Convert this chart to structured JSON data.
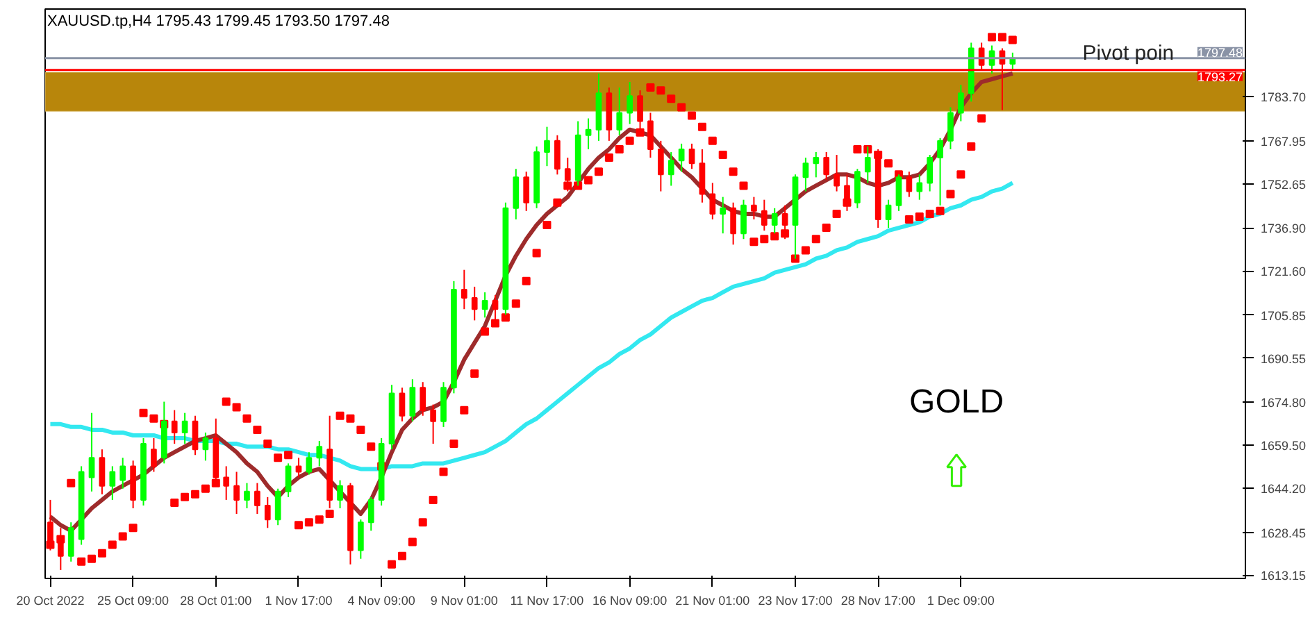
{
  "chart_data": {
    "type": "candlestick",
    "title": "XAUUSD.tp,H4  1795.43 1799.45 1793.50 1797.48",
    "categories": [
      "20 Oct 2022",
      null,
      null,
      null,
      null,
      null,
      null,
      null,
      "25 Oct 09:00",
      null,
      null,
      null,
      null,
      null,
      null,
      null,
      "28 Oct 01:00",
      null,
      null,
      null,
      null,
      null,
      null,
      null,
      "1 Nov 17:00",
      null,
      null,
      null,
      null,
      null,
      null,
      null,
      "4 Nov 09:00",
      null,
      null,
      null,
      null,
      null,
      null,
      null,
      "9 Nov 01:00",
      null,
      null,
      null,
      null,
      null,
      null,
      null,
      "11 Nov 17:00",
      null,
      null,
      null,
      null,
      null,
      null,
      null,
      "16 Nov 09:00",
      null,
      null,
      null,
      null,
      null,
      null,
      null,
      "21 Nov 01:00",
      null,
      null,
      null,
      null,
      null,
      null,
      null,
      "23 Nov 17:00",
      null,
      null,
      null,
      null,
      null,
      null,
      null,
      "28 Nov 17:00",
      null,
      null,
      null,
      null,
      null,
      null,
      null,
      "1 Dec 09:00",
      null,
      null,
      null,
      null,
      null,
      null,
      null,
      null,
      null,
      null,
      null,
      null,
      null,
      null,
      null,
      null,
      null,
      null,
      null,
      null,
      null,
      null,
      null,
      null,
      null,
      null,
      null
    ],
    "ohlc": [
      [
        1632,
        1640,
        1622,
        1625
      ],
      [
        1626,
        1630,
        1615,
        1620
      ],
      [
        1620,
        1632,
        1618,
        1630
      ],
      [
        1626,
        1652,
        1624,
        1650
      ],
      [
        1648,
        1671,
        1643,
        1655
      ],
      [
        1655,
        1658,
        1642,
        1645
      ],
      [
        1645,
        1652,
        1640,
        1650
      ],
      [
        1647,
        1655,
        1644,
        1652
      ],
      [
        1652,
        1654,
        1637,
        1640
      ],
      [
        1640,
        1662,
        1638,
        1660
      ],
      [
        1658,
        1662,
        1650,
        1652
      ],
      [
        1655,
        1675,
        1653,
        1668
      ],
      [
        1668,
        1672,
        1660,
        1664
      ],
      [
        1664,
        1671,
        1660,
        1668
      ],
      [
        1668,
        1670,
        1656,
        1658
      ],
      [
        1658,
        1664,
        1654,
        1662
      ],
      [
        1662,
        1669,
        1646,
        1648
      ],
      [
        1648,
        1652,
        1640,
        1645
      ],
      [
        1645,
        1650,
        1635,
        1640
      ],
      [
        1640,
        1646,
        1637,
        1643
      ],
      [
        1643,
        1646,
        1635,
        1638
      ],
      [
        1638,
        1641,
        1630,
        1633
      ],
      [
        1633,
        1644,
        1631,
        1643
      ],
      [
        1643,
        1653,
        1641,
        1652
      ],
      [
        1652,
        1655,
        1648,
        1650
      ],
      [
        1650,
        1657,
        1649,
        1655
      ],
      [
        1655,
        1661,
        1652,
        1659
      ],
      [
        1658,
        1670,
        1637,
        1640
      ],
      [
        1640,
        1647,
        1637,
        1645
      ],
      [
        1645,
        1646,
        1617,
        1622
      ],
      [
        1622,
        1633,
        1619,
        1632
      ],
      [
        1632,
        1641,
        1629,
        1640
      ],
      [
        1640,
        1662,
        1638,
        1660
      ],
      [
        1660,
        1681,
        1658,
        1678
      ],
      [
        1678,
        1680,
        1668,
        1670
      ],
      [
        1670,
        1683,
        1668,
        1680
      ],
      [
        1680,
        1682,
        1670,
        1672
      ],
      [
        1672,
        1674,
        1660,
        1668
      ],
      [
        1668,
        1682,
        1666,
        1680
      ],
      [
        1680,
        1718,
        1678,
        1715
      ],
      [
        1715,
        1722,
        1708,
        1712
      ],
      [
        1712,
        1716,
        1704,
        1708
      ],
      [
        1708,
        1714,
        1705,
        1711
      ],
      [
        1711,
        1713,
        1704,
        1708
      ],
      [
        1708,
        1746,
        1706,
        1744
      ],
      [
        1744,
        1758,
        1740,
        1755
      ],
      [
        1755,
        1757,
        1743,
        1746
      ],
      [
        1746,
        1766,
        1744,
        1764
      ],
      [
        1764,
        1773,
        1759,
        1768
      ],
      [
        1768,
        1770,
        1756,
        1758
      ],
      [
        1758,
        1762,
        1750,
        1754
      ],
      [
        1754,
        1775,
        1752,
        1770
      ],
      [
        1770,
        1776,
        1765,
        1772
      ],
      [
        1772,
        1792,
        1768,
        1785
      ],
      [
        1785,
        1787,
        1768,
        1772
      ],
      [
        1772,
        1787,
        1770,
        1778
      ],
      [
        1778,
        1789,
        1774,
        1784
      ],
      [
        1784,
        1786,
        1772,
        1775
      ],
      [
        1775,
        1778,
        1762,
        1765
      ],
      [
        1765,
        1768,
        1750,
        1756
      ],
      [
        1756,
        1764,
        1752,
        1761
      ],
      [
        1761,
        1767,
        1757,
        1765
      ],
      [
        1765,
        1767,
        1758,
        1760
      ],
      [
        1760,
        1765,
        1746,
        1749
      ],
      [
        1749,
        1753,
        1740,
        1742
      ],
      [
        1742,
        1748,
        1735,
        1744
      ],
      [
        1744,
        1746,
        1731,
        1735
      ],
      [
        1735,
        1747,
        1733,
        1745
      ],
      [
        1745,
        1748,
        1740,
        1743
      ],
      [
        1743,
        1747,
        1736,
        1738
      ],
      [
        1738,
        1744,
        1735,
        1742
      ],
      [
        1742,
        1745,
        1733,
        1738
      ],
      [
        1738,
        1756,
        1726,
        1755
      ],
      [
        1755,
        1762,
        1750,
        1760
      ],
      [
        1760,
        1764,
        1755,
        1762
      ],
      [
        1762,
        1764,
        1754,
        1756
      ],
      [
        1756,
        1763,
        1750,
        1752
      ],
      [
        1752,
        1756,
        1743,
        1746
      ],
      [
        1746,
        1758,
        1744,
        1757
      ],
      [
        1757,
        1766,
        1753,
        1762
      ],
      [
        1762,
        1765,
        1737,
        1740
      ],
      [
        1740,
        1747,
        1737,
        1745
      ],
      [
        1745,
        1756,
        1743,
        1755
      ],
      [
        1755,
        1757,
        1748,
        1750
      ],
      [
        1750,
        1756,
        1747,
        1753
      ],
      [
        1753,
        1763,
        1750,
        1762
      ],
      [
        1762,
        1769,
        1745,
        1768
      ],
      [
        1768,
        1780,
        1765,
        1778
      ],
      [
        1778,
        1788,
        1775,
        1785
      ],
      [
        1785,
        1803,
        1782,
        1801
      ],
      [
        1801,
        1803,
        1793,
        1795
      ],
      [
        1795,
        1802,
        1792,
        1800
      ],
      [
        1800,
        1801,
        1779,
        1795.43
      ],
      [
        1795.43,
        1799.45,
        1793.5,
        1797.48
      ],
      null,
      null,
      null,
      null,
      null,
      null,
      null,
      null,
      null,
      null,
      null,
      null,
      null,
      null,
      null,
      null,
      null,
      null,
      null,
      null,
      null,
      null
    ],
    "colors": [
      "#ff0000",
      "#ff0000",
      "#00ff00",
      "#00ff00",
      "#00ff00",
      "#ff0000",
      "#00ff00",
      "#00ff00",
      "#ff0000",
      "#00ff00",
      "#ff0000",
      "#00ff00",
      "#ff0000",
      "#00ff00",
      "#ff0000",
      "#00ff00",
      "#ff0000",
      "#ff0000",
      "#ff0000",
      "#00ff00",
      "#ff0000",
      "#ff0000",
      "#00ff00",
      "#00ff00",
      "#ff0000",
      "#00ff00",
      "#00ff00",
      "#ff0000",
      "#00ff00",
      "#ff0000",
      "#00ff00",
      "#00ff00",
      "#00ff00",
      "#00ff00",
      "#ff0000",
      "#00ff00",
      "#ff0000",
      "#ff0000",
      "#00ff00",
      "#00ff00",
      "#ff0000",
      "#ff0000",
      "#00ff00",
      "#ff0000",
      "#00ff00",
      "#00ff00",
      "#ff0000",
      "#00ff00",
      "#00ff00",
      "#ff0000",
      "#ff0000",
      "#00ff00",
      "#00ff00",
      "#00ff00",
      "#ff0000",
      "#00ff00",
      "#00ff00",
      "#ff0000",
      "#ff0000",
      "#ff0000",
      "#00ff00",
      "#00ff00",
      "#ff0000",
      "#ff0000",
      "#ff0000",
      "#00ff00",
      "#ff0000",
      "#00ff00",
      "#ff0000",
      "#ff0000",
      "#00ff00",
      "#ff0000",
      "#00ff00",
      "#00ff00",
      "#00ff00",
      "#ff0000",
      "#ff0000",
      "#ff0000",
      "#00ff00",
      "#00ff00",
      "#ff0000",
      "#00ff00",
      "#00ff00",
      "#ff0000",
      "#00ff00",
      "#00ff00",
      "#00ff00",
      "#00ff00",
      "#00ff00",
      "#00ff00",
      "#ff0000",
      "#00ff00",
      "#ff0000",
      "#00ff00",
      null,
      null,
      null,
      null,
      null,
      null,
      null,
      null,
      null,
      null,
      null,
      null,
      null,
      null,
      null,
      null,
      null,
      null,
      null,
      null,
      null,
      null
    ],
    "series": [
      {
        "type": "line",
        "color": "#33e8f0",
        "values": [
          1667,
          1667,
          1666,
          1666,
          1665,
          1665,
          1664,
          1664,
          1663,
          1663,
          1663,
          1662,
          1662,
          1662,
          1661,
          1661,
          1661,
          1660,
          1660,
          1659,
          1659,
          1659,
          1658,
          1658,
          1657,
          1656,
          1656,
          1655,
          1654,
          1652,
          1651,
          1651,
          1651,
          1652,
          1652,
          1652,
          1653,
          1653,
          1653,
          1654,
          1655,
          1656,
          1657,
          1659,
          1661,
          1664,
          1667,
          1669,
          1672,
          1675,
          1678,
          1681,
          1684,
          1687,
          1689,
          1692,
          1694,
          1697,
          1699,
          1702,
          1705,
          1707,
          1709,
          1711,
          1712,
          1714,
          1716,
          1717,
          1718,
          1719,
          1721,
          1722,
          1723,
          1724,
          1726,
          1727,
          1729,
          1730,
          1732,
          1733,
          1734,
          1736,
          1737,
          1738,
          1739,
          1741,
          1742,
          1744,
          1745,
          1747,
          1748,
          1750,
          1751,
          1753,
          null,
          null,
          null,
          null,
          null,
          null,
          null,
          null,
          null,
          null,
          null,
          null,
          null,
          null,
          null,
          null,
          null,
          null,
          null,
          null,
          null,
          null
        ]
      },
      {
        "type": "line",
        "color": "#9e2b2b",
        "values": [
          1634,
          1631,
          1629,
          1633,
          1637,
          1640,
          1643,
          1645,
          1647,
          1649,
          1652,
          1655,
          1657,
          1659,
          1661,
          1662,
          1663,
          1660,
          1657,
          1653,
          1650,
          1645,
          1641,
          1645,
          1648,
          1650,
          1651,
          1647,
          1643,
          1639,
          1635,
          1640,
          1648,
          1657,
          1665,
          1669,
          1672,
          1673,
          1675,
          1682,
          1690,
          1696,
          1702,
          1711,
          1720,
          1727,
          1733,
          1738,
          1742,
          1745,
          1748,
          1753,
          1758,
          1762,
          1765,
          1769,
          1772,
          1771,
          1770,
          1766,
          1762,
          1758,
          1755,
          1751,
          1747,
          1745,
          1743,
          1742,
          1742,
          1741,
          1741,
          1744,
          1747,
          1750,
          1752,
          1754,
          1756,
          1756,
          1755,
          1753,
          1752,
          1753,
          1755,
          1755,
          1756,
          1760,
          1765,
          1772,
          1780,
          1785,
          1789,
          1790,
          1791,
          1792,
          null,
          null,
          null,
          null,
          null,
          null,
          null,
          null,
          null,
          null,
          null,
          null,
          null,
          null,
          null,
          null,
          null,
          null,
          null,
          null,
          null,
          null
        ]
      },
      {
        "type": "scatter",
        "color": "#ff0000",
        "marker": "square",
        "values": [
          1624,
          1626,
          1646,
          1618,
          1619,
          1621,
          1624,
          1627,
          1630,
          1671,
          1669,
          1667,
          1639,
          1641,
          1642,
          1644,
          1646,
          1675,
          1673,
          1669,
          1665,
          1660,
          1655,
          1656,
          1631,
          1632,
          1633,
          1635,
          1670,
          1669,
          1665,
          1659,
          1652,
          1617,
          1620,
          1625,
          1632,
          1640,
          1650,
          1660,
          1672,
          1685,
          1700,
          1703,
          1705,
          1710,
          1718,
          1728,
          1738,
          1746,
          1752,
          1752,
          1754,
          1757,
          1762,
          1765,
          1768,
          1771,
          1787,
          1786,
          1783,
          1780,
          1777,
          1773,
          1768,
          1763,
          1757,
          1752,
          1732,
          1733,
          1734,
          1735,
          1726,
          1729,
          1733,
          1737,
          1742,
          1746,
          1765,
          1765,
          1763,
          1760,
          1756,
          1740,
          1741,
          1742,
          1743,
          1749,
          1756,
          1766,
          1776,
          1805,
          1805,
          1804,
          null,
          null,
          null,
          null,
          null,
          null,
          null,
          null,
          null,
          null,
          null,
          null,
          null,
          null,
          null,
          null,
          null,
          null,
          null,
          null,
          null,
          null
        ]
      }
    ],
    "ylim": [
      1612,
      1815
    ],
    "yticks": [
      1613.15,
      1628.45,
      {
        "value": 1644.2,
        "label": "1644.20"
      },
      {
        "value": 1659.5,
        "label": "1659.50"
      },
      {
        "value": 1674.8,
        "label": "1674.80"
      },
      1690.55,
      1705.85,
      {
        "value": 1721.6,
        "label": "1721.60"
      },
      {
        "value": 1736.9,
        "label": "1736.90"
      },
      1752.65,
      1767.95,
      {
        "value": 1783.7,
        "label": "1783.70"
      }
    ],
    "ref_lines": [
      {
        "axis": "y",
        "value": 1797.48,
        "label": "1797.48",
        "color": "#8a93a6"
      },
      {
        "axis": "y",
        "value": 1793.27,
        "label": "1793.27",
        "color": "#ff0000"
      }
    ],
    "bands": [
      {
        "axis": "y",
        "from": 1778.5,
        "to": 1792.5,
        "color": "#b8860b"
      }
    ],
    "annotations": [
      "GOLD",
      {
        "text": "Pivot poin",
        "y": 1795
      }
    ]
  }
}
